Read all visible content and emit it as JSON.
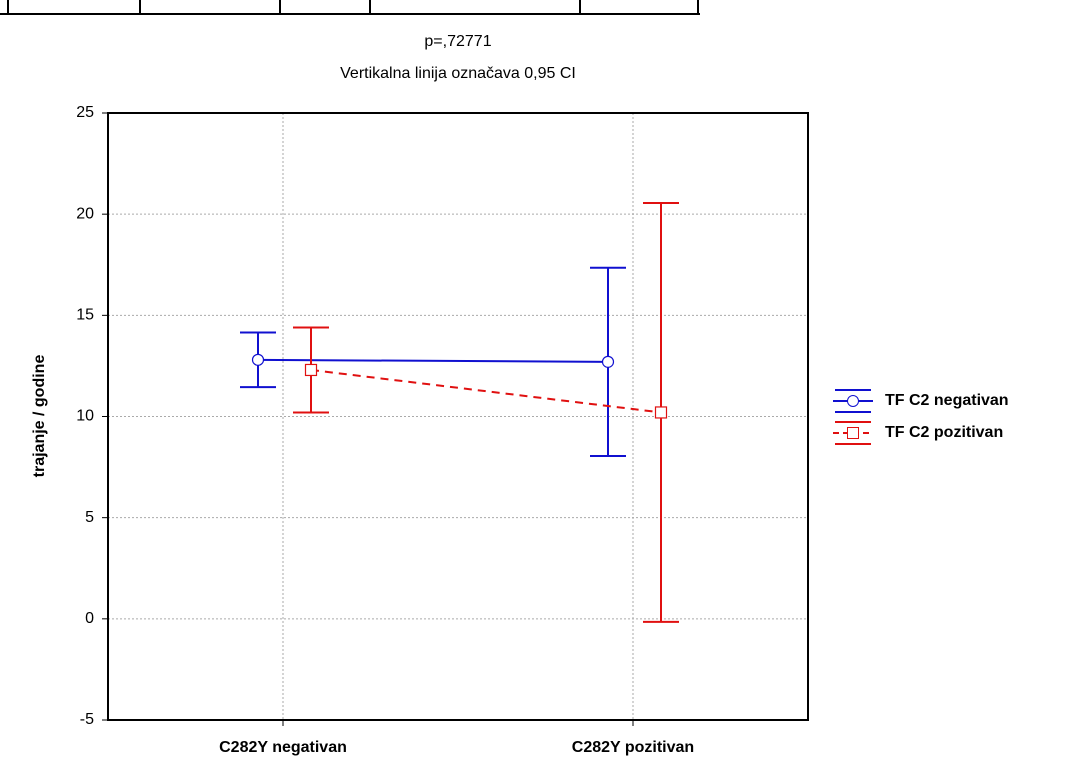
{
  "chart_data": {
    "type": "line",
    "title": "p=,72771",
    "subtitle": "Vertikalna linija označava 0,95 CI",
    "y_label": "trajanje / godine",
    "categories": [
      "C282Y negativan",
      "C282Y pozitivan"
    ],
    "series": [
      {
        "name": "TF C2 negativan",
        "color": "#1010d0",
        "dash": false,
        "marker": "circle",
        "values": [
          12.8,
          12.7
        ],
        "errors": [
          1.35,
          4.65
        ]
      },
      {
        "name": "TF C2 pozitivan",
        "color": "#e01010",
        "dash": true,
        "marker": "square",
        "values": [
          12.3,
          10.2
        ],
        "errors": [
          2.1,
          10.35
        ]
      }
    ],
    "ylim": [
      -5,
      25
    ],
    "yticks": [
      -5,
      0,
      5,
      10,
      15,
      20,
      25
    ],
    "grid": true
  }
}
